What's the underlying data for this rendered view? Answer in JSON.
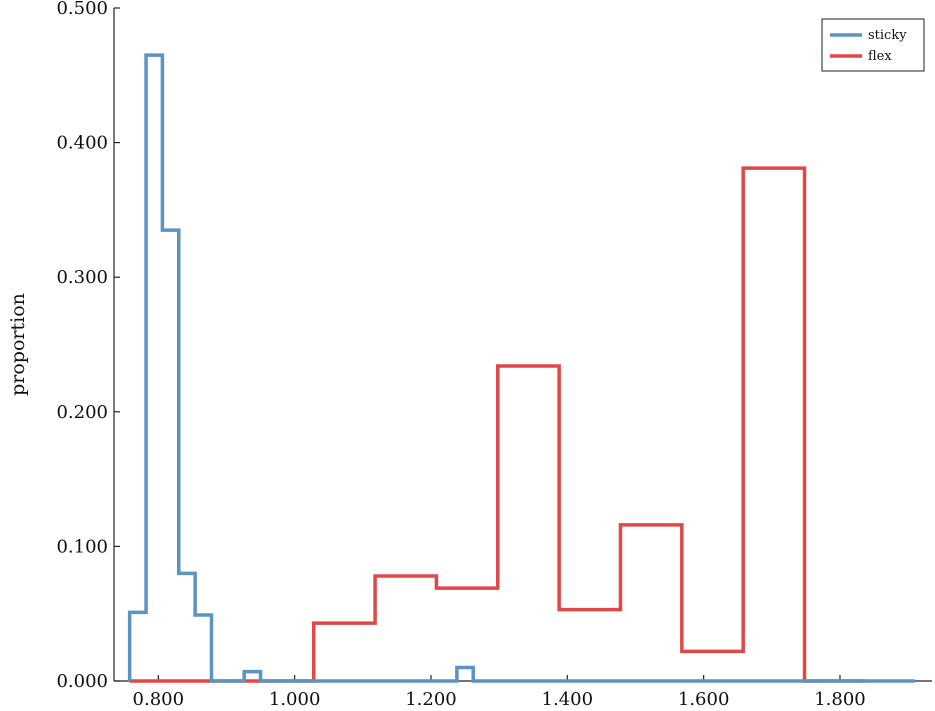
{
  "chart_data": {
    "type": "histogram-step",
    "title": "",
    "xlabel": "",
    "ylabel": "proportion",
    "xlim": [
      0.735,
      1.935
    ],
    "ylim": [
      0,
      0.5
    ],
    "xticks": [
      0.8,
      1.0,
      1.2,
      1.4,
      1.6,
      1.8
    ],
    "xtick_labels": [
      "0.800",
      "1.000",
      "1.200",
      "1.400",
      "1.600",
      "1.800"
    ],
    "yticks": [
      0,
      0.1,
      0.2,
      0.3,
      0.4,
      0.5
    ],
    "ytick_labels": [
      "0.000",
      "0.100",
      "0.200",
      "0.300",
      "0.400",
      "0.500"
    ],
    "grid": false,
    "legend_position": "top-right",
    "series": [
      {
        "name": "sticky",
        "color": "#5b93c1",
        "edges": [
          0.758,
          0.782,
          0.806,
          0.83,
          0.854,
          0.878,
          0.902,
          0.926,
          0.95,
          0.974,
          0.998,
          1.022,
          1.046,
          1.07,
          1.094,
          1.118,
          1.142,
          1.166,
          1.19,
          1.214,
          1.238,
          1.262,
          1.286,
          1.31,
          1.334,
          1.358,
          1.382,
          1.406,
          1.43,
          1.454,
          1.478,
          1.502,
          1.526,
          1.55,
          1.574,
          1.598,
          1.622,
          1.646,
          1.67,
          1.694,
          1.718,
          1.742,
          1.766,
          1.79,
          1.814,
          1.838,
          1.862,
          1.886,
          1.91
        ],
        "values": [
          0.051,
          0.465,
          0.335,
          0.08,
          0.049,
          0.0,
          0.0,
          0.007,
          0.0,
          0.0,
          0.0,
          0.0,
          0.0,
          0.0,
          0.0,
          0.0,
          0.0,
          0.0,
          0.0,
          0.0,
          0.01,
          0.0,
          0.0,
          0.0,
          0.0,
          0.0,
          0.0,
          0.0,
          0.0,
          0.0,
          0.0,
          0.0,
          0.0,
          0.0,
          0.0,
          0.0,
          0.0,
          0.0,
          0.0,
          0.0,
          0.0,
          0.0,
          0.0,
          0.0,
          0.0,
          0.0,
          0.0,
          0.0
        ]
      },
      {
        "name": "flex",
        "color": "#e04848",
        "edges": [
          0.758,
          0.848,
          0.938,
          1.028,
          1.118,
          1.208,
          1.298,
          1.388,
          1.478,
          1.568,
          1.658,
          1.748,
          1.838
        ],
        "values": [
          0.0,
          0.0,
          0.0,
          0.043,
          0.078,
          0.069,
          0.234,
          0.053,
          0.116,
          0.022,
          0.381,
          0.0
        ]
      }
    ]
  }
}
